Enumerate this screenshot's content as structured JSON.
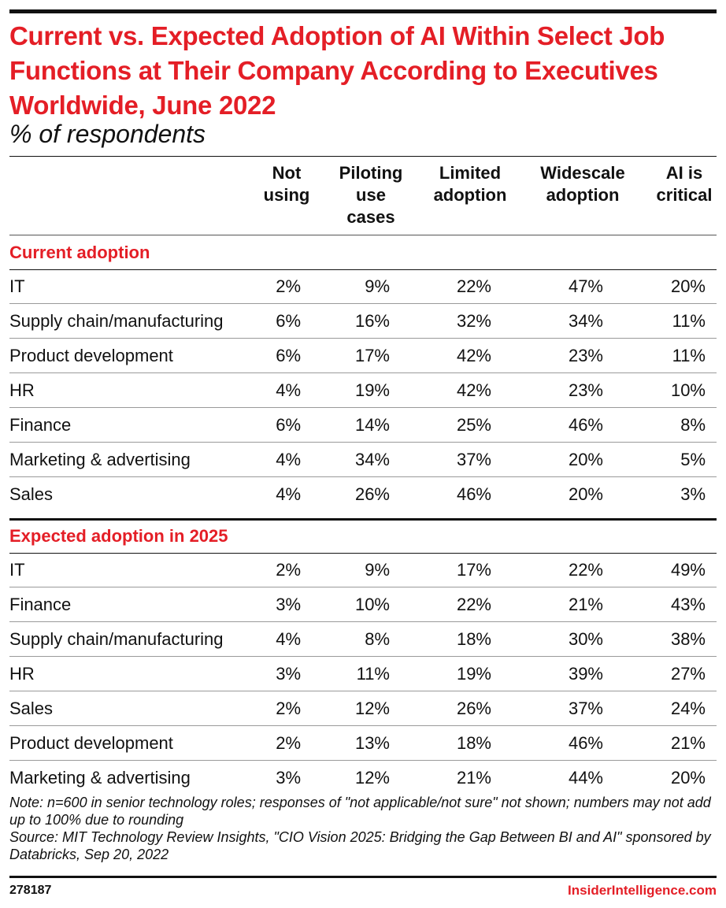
{
  "chart_data": {
    "type": "table",
    "title": "Current vs. Expected Adoption of AI Within Select Job Functions at Their Company According to Executives Worldwide, June 2022",
    "subtitle": "% of respondents",
    "columns": [
      "Not\nusing",
      "Piloting\nuse\ncases",
      "Limited\nadoption",
      "Widescale\nadoption",
      "AI is\ncritical"
    ],
    "sections": [
      {
        "label": "Current adoption",
        "rows": [
          {
            "name": "IT",
            "values": [
              "2%",
              "9%",
              "22%",
              "47%",
              "20%"
            ]
          },
          {
            "name": "Supply chain/manufacturing",
            "values": [
              "6%",
              "16%",
              "32%",
              "34%",
              "11%"
            ]
          },
          {
            "name": "Product development",
            "values": [
              "6%",
              "17%",
              "42%",
              "23%",
              "11%"
            ]
          },
          {
            "name": "HR",
            "values": [
              "4%",
              "19%",
              "42%",
              "23%",
              "10%"
            ]
          },
          {
            "name": "Finance",
            "values": [
              "6%",
              "14%",
              "25%",
              "46%",
              "8%"
            ]
          },
          {
            "name": "Marketing & advertising",
            "values": [
              "4%",
              "34%",
              "37%",
              "20%",
              "5%"
            ]
          },
          {
            "name": "Sales",
            "values": [
              "4%",
              "26%",
              "46%",
              "20%",
              "3%"
            ]
          }
        ]
      },
      {
        "label": "Expected adoption in 2025",
        "rows": [
          {
            "name": "IT",
            "values": [
              "2%",
              "9%",
              "17%",
              "22%",
              "49%"
            ]
          },
          {
            "name": "Finance",
            "values": [
              "3%",
              "10%",
              "22%",
              "21%",
              "43%"
            ]
          },
          {
            "name": "Supply chain/manufacturing",
            "values": [
              "4%",
              "8%",
              "18%",
              "30%",
              "38%"
            ]
          },
          {
            "name": "HR",
            "values": [
              "3%",
              "11%",
              "19%",
              "39%",
              "27%"
            ]
          },
          {
            "name": "Sales",
            "values": [
              "2%",
              "12%",
              "26%",
              "37%",
              "24%"
            ]
          },
          {
            "name": "Product development",
            "values": [
              "2%",
              "13%",
              "18%",
              "46%",
              "21%"
            ]
          },
          {
            "name": "Marketing & advertising",
            "values": [
              "3%",
              "12%",
              "21%",
              "44%",
              "20%"
            ]
          }
        ]
      }
    ]
  },
  "note": "Note: n=600 in senior technology roles; responses of \"not applicable/not sure\" not shown; numbers may not add up to 100% due to rounding",
  "source": "Source: MIT Technology Review Insights, \"CIO Vision 2025: Bridging the Gap Between BI and AI\" sponsored by Databricks, Sep 20, 2022",
  "footer": {
    "chart_id": "278187",
    "brand": "InsiderIntelligence.com"
  },
  "colors": {
    "accent": "#e41e26",
    "text": "#111111"
  }
}
